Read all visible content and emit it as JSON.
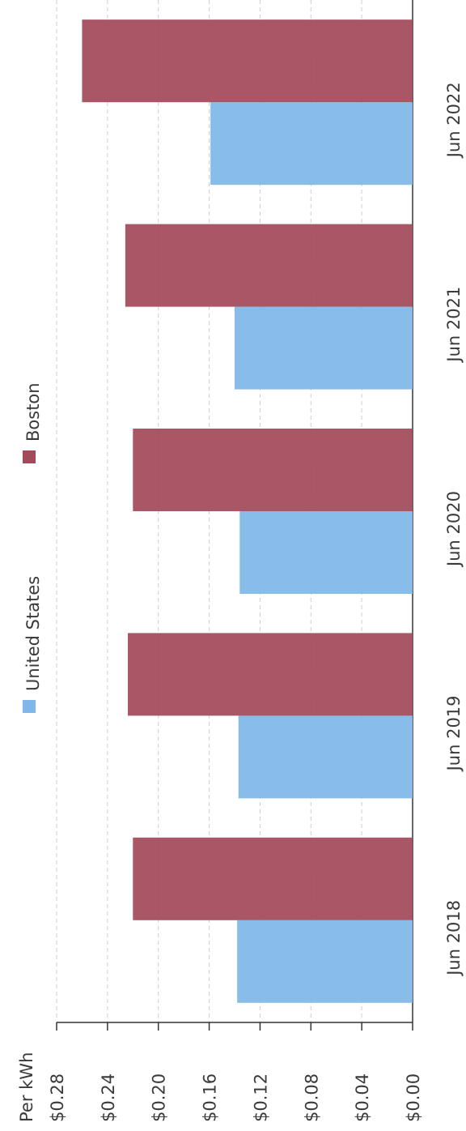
{
  "chart_data": {
    "type": "bar",
    "orientation": "vertical bars, page rotated 90 degrees counter-clockwise",
    "ylabel": "Per kWh",
    "categories": [
      "Jun 2018",
      "Jun 2019",
      "Jun 2020",
      "Jun 2021",
      "Jun 2022"
    ],
    "series": [
      {
        "name": "United States",
        "color": "#7fb8e8",
        "values": [
          0.138,
          0.137,
          0.136,
          0.14,
          0.159
        ]
      },
      {
        "name": "Boston",
        "color": "#a34a5a",
        "values": [
          0.22,
          0.224,
          0.22,
          0.226,
          0.26
        ]
      }
    ],
    "ylim": [
      0,
      0.28
    ],
    "y_ticks": [
      "$0.00",
      "$0.04",
      "$0.08",
      "$0.12",
      "$0.16",
      "$0.20",
      "$0.24",
      "$0.28"
    ],
    "grid": true,
    "legend": "top"
  }
}
